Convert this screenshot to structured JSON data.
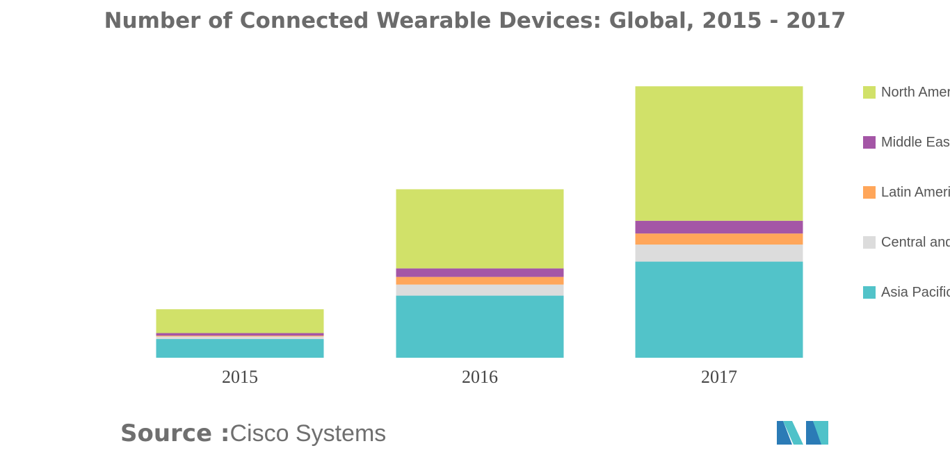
{
  "chart_data": {
    "type": "bar",
    "stacked": true,
    "title": "Number of Connected Wearable Devices: Global, 2015 - 2017",
    "xlabel": "",
    "ylabel": "",
    "ylim": [
      0,
      160
    ],
    "grid": false,
    "legend_position": "right",
    "categories": [
      "2015",
      "2016",
      "2017"
    ],
    "series": [
      {
        "name": "Asia Pacific",
        "color": "#52c3c9",
        "values": [
          11,
          36.5,
          56.5
        ]
      },
      {
        "name": "Central and Eastern Europe",
        "color": "#dcdcdc",
        "values": [
          1.5,
          6.5,
          10
        ]
      },
      {
        "name": "Latin America",
        "color": "#ffa65a",
        "values": [
          0.5,
          4.5,
          6.5
        ]
      },
      {
        "name": "Middle East and Africa",
        "color": "#a456a6",
        "values": [
          1.5,
          5,
          7.5
        ]
      },
      {
        "name": "North America",
        "color": "#d1e169",
        "values": [
          14,
          46.5,
          79
        ]
      }
    ]
  },
  "legend_order": [
    "North America",
    "Middle East and Africa",
    "Latin America",
    "Central and Eastern Europe",
    "Asia Pacific"
  ],
  "source": {
    "label": "Source :",
    "value": "Cisco Systems"
  },
  "logo": {
    "icon": "mordor-intelligence-logo-icon",
    "colors": [
      "#2b7bb6",
      "#4fc2c9"
    ]
  }
}
